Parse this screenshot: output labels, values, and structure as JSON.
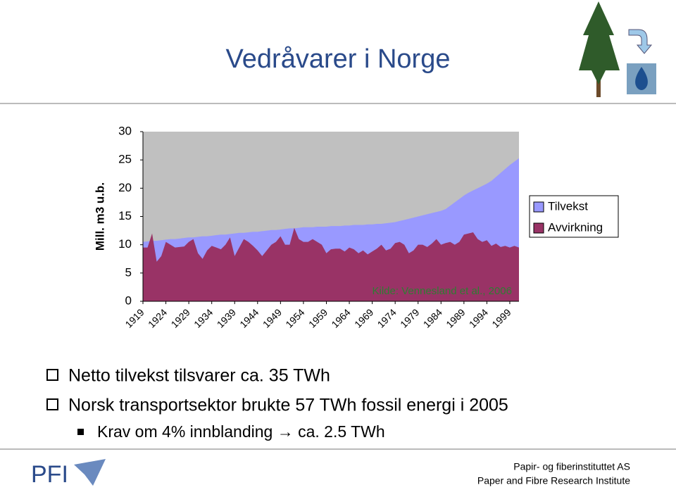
{
  "header": {
    "title": "Vedråvarer i Norge"
  },
  "chart_data": {
    "type": "area",
    "y_label": "Mill. m3 u.b.",
    "annotation": "Kilde: Vennesland et al., 2006",
    "x": [
      1919,
      1920,
      1921,
      1922,
      1923,
      1924,
      1925,
      1926,
      1927,
      1928,
      1929,
      1930,
      1931,
      1932,
      1933,
      1934,
      1935,
      1936,
      1937,
      1938,
      1939,
      1940,
      1941,
      1942,
      1943,
      1944,
      1945,
      1946,
      1947,
      1948,
      1949,
      1950,
      1951,
      1952,
      1953,
      1954,
      1955,
      1956,
      1957,
      1958,
      1959,
      1960,
      1961,
      1962,
      1963,
      1964,
      1965,
      1966,
      1967,
      1968,
      1969,
      1970,
      1971,
      1972,
      1973,
      1974,
      1975,
      1976,
      1977,
      1978,
      1979,
      1980,
      1981,
      1982,
      1983,
      1984,
      1985,
      1986,
      1987,
      1988,
      1989,
      1990,
      1991,
      1992,
      1993,
      1994,
      1995,
      1996,
      1997,
      1998,
      1999,
      2000,
      2001
    ],
    "series": [
      {
        "name": "Tilvekst",
        "color": "#9999ff",
        "values": [
          10.5,
          10.6,
          10.7,
          10.7,
          10.8,
          10.9,
          11.0,
          11.0,
          11.1,
          11.2,
          11.3,
          11.3,
          11.4,
          11.5,
          11.5,
          11.6,
          11.7,
          11.8,
          11.8,
          11.9,
          12.0,
          12.1,
          12.1,
          12.2,
          12.3,
          12.3,
          12.4,
          12.5,
          12.6,
          12.6,
          12.7,
          12.8,
          12.9,
          12.9,
          13.0,
          13.1,
          13.1,
          13.1,
          13.2,
          13.2,
          13.2,
          13.3,
          13.3,
          13.3,
          13.4,
          13.4,
          13.5,
          13.5,
          13.5,
          13.6,
          13.6,
          13.7,
          13.7,
          13.8,
          13.9,
          14.0,
          14.2,
          14.4,
          14.6,
          14.8,
          15.0,
          15.2,
          15.4,
          15.6,
          15.8,
          16.0,
          16.3,
          16.9,
          17.5,
          18.1,
          18.7,
          19.2,
          19.6,
          20.0,
          20.4,
          20.8,
          21.3,
          22.0,
          22.7,
          23.4,
          24.1,
          24.7,
          25.3
        ]
      },
      {
        "name": "Avvirkning",
        "color": "#993366",
        "values": [
          9.5,
          9.5,
          12,
          7,
          8,
          10.5,
          10,
          9.5,
          9.6,
          9.7,
          10.5,
          11,
          8.5,
          7.5,
          9,
          9.8,
          9.5,
          9.2,
          10,
          11.3,
          8,
          9.5,
          11,
          10.5,
          9.8,
          9,
          8,
          9,
          10,
          10.5,
          11.5,
          10,
          10,
          13,
          11,
          10.5,
          10.5,
          11,
          10.5,
          10,
          8.5,
          9.2,
          9.3,
          9.3,
          8.8,
          9.5,
          9.2,
          8.5,
          9,
          8.3,
          8.8,
          9.3,
          10,
          9,
          9.3,
          10.3,
          10.5,
          10,
          8.5,
          9,
          10,
          10,
          9.6,
          10.2,
          11,
          10,
          10.3,
          10.5,
          10,
          10.5,
          11.8,
          12,
          12.2,
          11,
          10.5,
          10.8,
          9.8,
          10.2,
          9.6,
          9.8,
          9.5,
          9.8,
          9.5
        ]
      }
    ],
    "xlim": [
      1919,
      2001
    ],
    "xticks": [
      1919,
      1924,
      1929,
      1934,
      1939,
      1944,
      1949,
      1954,
      1959,
      1964,
      1969,
      1974,
      1979,
      1984,
      1989,
      1994,
      1999
    ],
    "ylim": [
      0,
      30
    ],
    "yticks": [
      0,
      5,
      10,
      15,
      20,
      25,
      30
    ],
    "plot_background": "#c0c0c0",
    "legend": "right"
  },
  "bullets": [
    "Netto tilvekst tilsvarer ca. 35 TWh",
    "Norsk transportsektor brukte 57 TWh fossil energi i 2005"
  ],
  "sub_bullets": [
    "Krav om 4% innblanding → ca. 2.5 TWh"
  ],
  "footer": {
    "logo": "PFI",
    "line1": "Papir- og fiberinstituttet AS",
    "line2": "Paper and Fibre Research Institute"
  }
}
